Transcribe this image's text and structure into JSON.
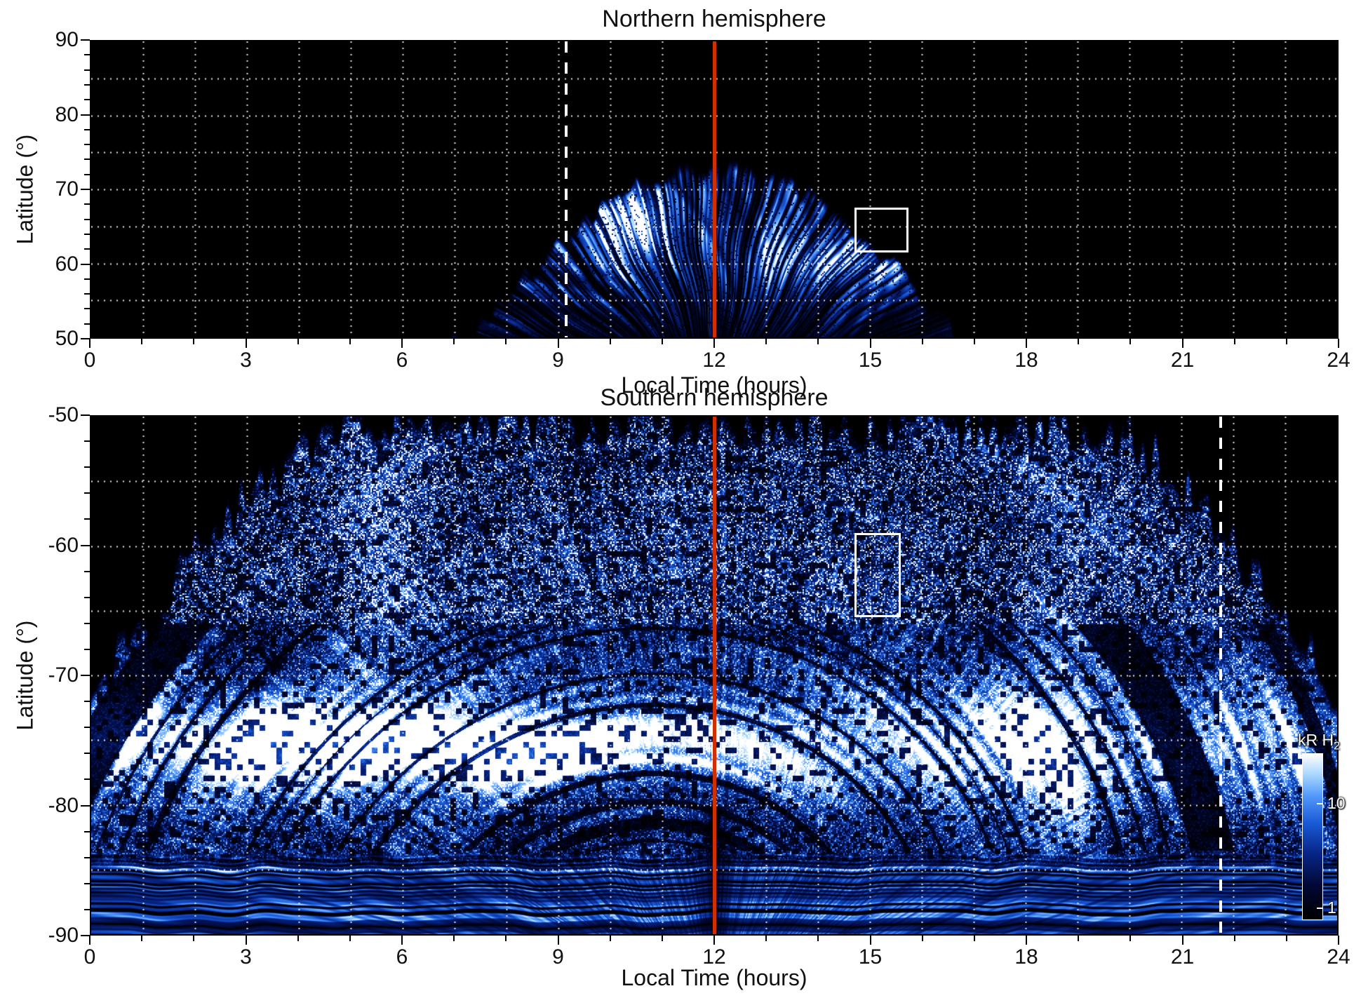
{
  "north": {
    "title": "Northern hemisphere",
    "xlabel": "Local Time (hours)",
    "ylabel": "Latitude (°)",
    "x_tick_labels": [
      "0",
      "3",
      "6",
      "9",
      "12",
      "15",
      "18",
      "21",
      "24"
    ],
    "y_tick_labels": [
      "90",
      "80",
      "70",
      "60",
      "50"
    ],
    "annotations": {
      "noon_line_x": 12,
      "dashed_line_x": 9.15,
      "roi_box": {
        "x_range": [
          14.7,
          15.75
        ],
        "lat_range": [
          67.5,
          61.5
        ]
      }
    }
  },
  "south": {
    "title": "Southern hemisphere",
    "xlabel": "Local Time (hours)",
    "ylabel": "Latitude (°)",
    "x_tick_labels": [
      "0",
      "3",
      "6",
      "9",
      "12",
      "15",
      "18",
      "21",
      "24"
    ],
    "y_tick_labels": [
      "-50",
      "-60",
      "-70",
      "-80",
      "-90"
    ],
    "annotations": {
      "noon_line_x": 12,
      "dashed_line_x": 21.75,
      "roi_box": {
        "x_range": [
          14.7,
          15.6
        ],
        "lat_range": [
          -59,
          -65.5
        ]
      }
    }
  },
  "colorbar": {
    "label": "kR H",
    "label_sub": "2",
    "tick_labels": [
      "10",
      "1"
    ],
    "tick_values": [
      10,
      1
    ],
    "scale_min": 0.8,
    "scale_max": 30
  },
  "chart_data": [
    {
      "type": "heatmap",
      "title": "Northern hemisphere",
      "xlabel": "Local Time (hours)",
      "ylabel": "Latitude (°)",
      "x_range": [
        0,
        24
      ],
      "x_tick_values": [
        0,
        3,
        6,
        9,
        12,
        15,
        18,
        21,
        24
      ],
      "y_range": [
        50,
        90
      ],
      "y_tick_values": [
        90,
        80,
        70,
        60,
        50
      ],
      "grid": {
        "style": "white dotted",
        "x_step_hours": 1,
        "y_step_degrees": 5
      },
      "background": "black (no emission / no data)",
      "colorbar": {
        "label": "kR H2",
        "scale": "logarithmic",
        "tick_values": [
          10,
          1
        ],
        "range_kR": [
          1,
          30
        ],
        "colormap": "black - dark blue - blue - light blue - white"
      },
      "annotations": [
        {
          "type": "vertical_line",
          "color": "red",
          "style": "solid",
          "x_hours": 12
        },
        {
          "type": "vertical_line",
          "color": "white",
          "style": "dashed",
          "x_hours": 9.15
        },
        {
          "type": "rectangle",
          "color": "white",
          "x_hours": [
            14.7,
            15.75
          ],
          "latitude_deg": [
            61.5,
            67.5
          ]
        }
      ],
      "emission": {
        "coverage": "dome/fan of radial emission streaks centred on 12 h local time; black elsewhere",
        "local_time_extent_hours": [
          7.6,
          16.6
        ],
        "max_latitude_deg": 73.5,
        "brightest_patch": {
          "local_time_hours": [
            9.8,
            11.3
          ],
          "latitude_deg": [
            60,
            70
          ],
          "intensity": "saturated white, >10 kR"
        },
        "secondary_bright_streaks": {
          "local_time_hours": [
            13,
            16
          ],
          "latitude_deg": [
            56,
            63
          ],
          "intensity": "5-10 kR"
        },
        "typical_intensity_kR": [
          1,
          10
        ]
      }
    },
    {
      "type": "heatmap",
      "title": "Southern hemisphere",
      "xlabel": "Local Time (hours)",
      "ylabel": "Latitude (°)",
      "x_range": [
        0,
        24
      ],
      "x_tick_values": [
        0,
        3,
        6,
        9,
        12,
        15,
        18,
        21,
        24
      ],
      "y_range": [
        -90,
        -50
      ],
      "y_tick_values": [
        -50,
        -60,
        -70,
        -80,
        -90
      ],
      "grid": {
        "style": "white dotted",
        "x_step_hours": 1,
        "y_step_degrees": 5
      },
      "background": "black (no emission / no data)",
      "colorbar": {
        "label": "kR H2",
        "scale": "logarithmic",
        "tick_values": [
          10,
          1
        ],
        "range_kR": [
          1,
          30
        ],
        "colormap": "black - dark blue - blue - light blue - white"
      },
      "annotations": [
        {
          "type": "vertical_line",
          "color": "red",
          "style": "solid",
          "x_hours": 12
        },
        {
          "type": "vertical_line",
          "color": "white",
          "style": "dashed",
          "x_hours": 21.75
        },
        {
          "type": "rectangle",
          "color": "white",
          "x_hours": [
            14.7,
            15.6
          ],
          "latitude_deg": [
            -59,
            -65.5
          ]
        }
      ],
      "emission": {
        "coverage": "dense speckled emission and nested arc-like scan streaks over most of the hemisphere",
        "empty_regions": "black corners equatorward of about -70 deg near 0-5 h and 19.5-24 h local time",
        "brightest_band": {
          "local_time_hours": [
            1,
            9
          ],
          "latitude_deg": [
            -73,
            -78
          ],
          "intensity": "saturated white, >10 kR"
        },
        "dawn_band": {
          "local_time_hours": [
            5,
            6.5
          ],
          "latitude_deg": [
            -50,
            -72
          ]
        },
        "dusk_arc": {
          "local_time_hours": [
            18,
            19.5
          ],
          "latitude_deg": [
            -55,
            -85
          ]
        },
        "polar_arcs": "horizontal banded arcs spanning all local times between -84 and -90 deg",
        "typical_intensity_kR": [
          1,
          10
        ]
      }
    }
  ]
}
